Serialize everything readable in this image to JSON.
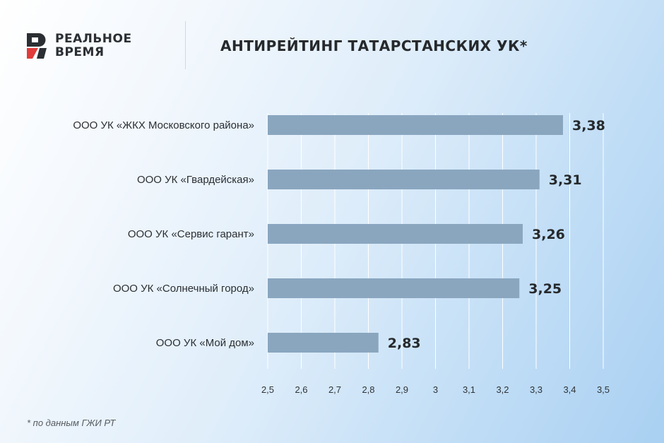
{
  "brand": {
    "line1": "РЕАЛЬНОЕ",
    "line2": "ВРЕМЯ"
  },
  "title": "АНТИРЕЙТИНГ ТАТАРСТАНСКИХ УК*",
  "footnote": "* по данным ГЖИ РТ",
  "colors": {
    "bar": "#8aa6bf",
    "grid": "#ffffff",
    "logo_dark": "#2b2f33",
    "logo_red": "#e03c3a"
  },
  "chart_data": {
    "type": "bar",
    "orientation": "horizontal",
    "categories": [
      "ООО УК «ЖКХ Московского района»",
      "ООО УК «Гвардейская»",
      "ООО УК «Сервис гарант»",
      "ООО УК «Солнечный город»",
      "ООО УК «Мой дом»"
    ],
    "values": [
      3.38,
      3.31,
      3.26,
      3.25,
      2.83
    ],
    "value_labels": [
      "3,38",
      "3,31",
      "3,26",
      "3,25",
      "2,83"
    ],
    "xlim": [
      2.5,
      3.5
    ],
    "xticks": [
      2.5,
      2.6,
      2.7,
      2.8,
      2.9,
      3.0,
      3.1,
      3.2,
      3.3,
      3.4,
      3.5
    ],
    "xtick_labels": [
      "2,5",
      "2,6",
      "2,7",
      "2,8",
      "2,9",
      "3",
      "3,1",
      "3,2",
      "3,3",
      "3,4",
      "3,5"
    ],
    "grid": true
  }
}
